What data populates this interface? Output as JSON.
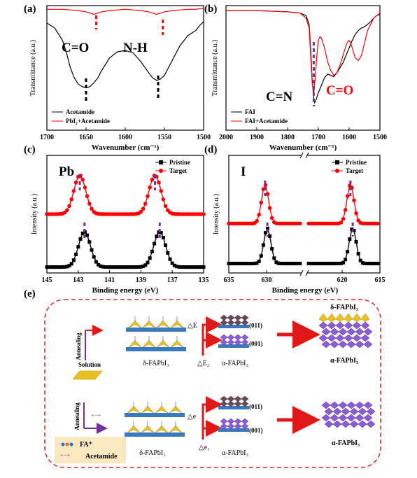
{
  "panels": {
    "a": {
      "label": "(a)",
      "ylabel": "Transmittance (a.u.)",
      "xlabel": "Wavenumber (cm⁻¹)",
      "xticks": [
        "1700",
        "1650",
        "1600",
        "1550",
        "1500"
      ],
      "ann_co": "C=O",
      "ann_nh": "N-H",
      "legend": [
        "Acetamide",
        "PbI₂+Acetamide"
      ]
    },
    "b": {
      "label": "(b)",
      "ylabel": "Transmittance (a.u.)",
      "xlabel": "Wavenumber (cm⁻¹)",
      "xticks": [
        "2000",
        "1900",
        "1800",
        "1700",
        "1600",
        "1500"
      ],
      "ann_cn": "C=N",
      "ann_co": "C=O",
      "legend": [
        "FAI",
        "FAI+Acetamide"
      ]
    },
    "c": {
      "label": "(c)",
      "ylabel": "Intensity (a.u.)",
      "xlabel": "Binding energy (eV)",
      "xticks": [
        "145",
        "143",
        "141",
        "139",
        "137",
        "135"
      ],
      "element": "Pb",
      "legend": [
        "Pristine",
        "Target"
      ]
    },
    "d": {
      "label": "(d)",
      "ylabel": "Intensity (a.u.)",
      "xlabel": "Binding energy (eV)",
      "xticks": [
        "635",
        "630",
        "620",
        "615"
      ],
      "element": "I",
      "legend": [
        "Pristine",
        "Target"
      ]
    }
  },
  "schematic": {
    "label": "(e)",
    "annealing": "Annealing",
    "solution": "Solution",
    "delta_fapbi3": "δ-FAPbI₃",
    "alpha_fapbi3": "α-FAPbI₃",
    "facet_011": "(011)",
    "facet_001": "(001)",
    "dE": "△E",
    "dE2": "△E₂",
    "de": "△e",
    "de1": "△e₁",
    "fa_plus": "FA⁺",
    "acetamide": "Acetamide"
  },
  "colors": {
    "black": "#000000",
    "red": "#ff0000",
    "purple": "#7030a0",
    "violet": "#8a5cd6",
    "crystal_yellow": "#e8c020",
    "substrate_blue": "#3a78c0",
    "arrow_red": "#e01818"
  },
  "chart_data": [
    {
      "panel": "a",
      "type": "line",
      "xlabel": "Wavenumber (cm⁻¹)",
      "ylabel": "Transmittance (a.u.)",
      "xlim": [
        1700,
        1500
      ],
      "x_reversed": true,
      "series": [
        {
          "name": "Acetamide",
          "color": "#000000",
          "x": [
            1700,
            1690,
            1680,
            1675,
            1670,
            1665,
            1660,
            1655,
            1650,
            1645,
            1640,
            1635,
            1630,
            1620,
            1610,
            1600,
            1590,
            1580,
            1570,
            1565,
            1560,
            1555,
            1550,
            1545,
            1540,
            1530,
            1520,
            1510,
            1505,
            1500
          ],
          "y": [
            0.86,
            0.82,
            0.72,
            0.62,
            0.5,
            0.42,
            0.37,
            0.35,
            0.34,
            0.35,
            0.38,
            0.42,
            0.48,
            0.58,
            0.63,
            0.64,
            0.62,
            0.55,
            0.46,
            0.42,
            0.4,
            0.41,
            0.44,
            0.5,
            0.56,
            0.68,
            0.76,
            0.8,
            0.84,
            0.87
          ]
        },
        {
          "name": "PbI₂+Acetamide",
          "color": "#ff0000",
          "x": [
            1700,
            1680,
            1660,
            1650,
            1645,
            1640,
            1635,
            1630,
            1620,
            1600,
            1580,
            1570,
            1565,
            1560,
            1555,
            1550,
            1540,
            1520,
            1510,
            1500
          ],
          "y": [
            0.97,
            0.97,
            0.96,
            0.95,
            0.94,
            0.93,
            0.94,
            0.95,
            0.96,
            0.97,
            0.96,
            0.95,
            0.94,
            0.93,
            0.94,
            0.95,
            0.96,
            0.97,
            0.97,
            0.98
          ]
        }
      ],
      "markers": [
        {
          "x": 1650,
          "color": "#000000"
        },
        {
          "x": 1558,
          "color": "#000000"
        },
        {
          "x": 1637,
          "color": "#ff0000"
        },
        {
          "x": 1552,
          "color": "#ff0000"
        }
      ]
    },
    {
      "panel": "b",
      "type": "line",
      "xlabel": "Wavenumber (cm⁻¹)",
      "ylabel": "Transmittance (a.u.)",
      "xlim": [
        2000,
        1500
      ],
      "x_reversed": true,
      "series": [
        {
          "name": "FAI",
          "color": "#000000",
          "x": [
            2000,
            1900,
            1800,
            1760,
            1740,
            1730,
            1725,
            1720,
            1715,
            1712,
            1708,
            1700,
            1690,
            1680,
            1670,
            1660,
            1650,
            1640,
            1630,
            1620,
            1610,
            1600,
            1590,
            1580,
            1570,
            1560,
            1550,
            1540,
            1530,
            1520,
            1510,
            1500
          ],
          "y": [
            0.96,
            0.96,
            0.95,
            0.94,
            0.92,
            0.85,
            0.65,
            0.4,
            0.25,
            0.22,
            0.24,
            0.3,
            0.36,
            0.42,
            0.45,
            0.44,
            0.43,
            0.46,
            0.5,
            0.54,
            0.6,
            0.66,
            0.72,
            0.77,
            0.8,
            0.82,
            0.83,
            0.85,
            0.87,
            0.9,
            0.92,
            0.93
          ]
        },
        {
          "name": "FAI+Acetamide",
          "color": "#ff0000",
          "x": [
            2000,
            1900,
            1800,
            1760,
            1740,
            1730,
            1725,
            1720,
            1715,
            1710,
            1705,
            1700,
            1695,
            1690,
            1685,
            1680,
            1670,
            1660,
            1650,
            1640,
            1630,
            1620,
            1610,
            1605,
            1600,
            1595,
            1590,
            1580,
            1570,
            1560,
            1550,
            1540,
            1520,
            1500
          ],
          "y": [
            0.96,
            0.96,
            0.95,
            0.94,
            0.9,
            0.82,
            0.6,
            0.38,
            0.3,
            0.42,
            0.6,
            0.72,
            0.75,
            0.74,
            0.7,
            0.66,
            0.55,
            0.48,
            0.44,
            0.46,
            0.52,
            0.6,
            0.68,
            0.71,
            0.72,
            0.7,
            0.66,
            0.58,
            0.56,
            0.6,
            0.7,
            0.8,
            0.9,
            0.94
          ]
        }
      ],
      "markers": [
        {
          "x": 1715,
          "color": "#7030a0"
        }
      ]
    },
    {
      "panel": "c",
      "type": "line",
      "xlabel": "Binding energy (eV)",
      "ylabel": "Intensity (a.u.)",
      "xlim": [
        145,
        135
      ],
      "x_reversed": true,
      "series": [
        {
          "name": "Pristine",
          "color": "#000000",
          "peaks": [
            142.6,
            137.8
          ],
          "width": 0.45,
          "offset": 0.05,
          "amplitude": 0.3
        },
        {
          "name": "Target",
          "color": "#ff0000",
          "peaks": [
            142.9,
            138.1
          ],
          "width": 0.45,
          "offset": 0.5,
          "amplitude": 0.33
        }
      ],
      "markers": [
        {
          "x": 142.6,
          "color": "#7030a0"
        },
        {
          "x": 137.8,
          "color": "#7030a0"
        },
        {
          "x": 142.9,
          "color": "#7030a0"
        },
        {
          "x": 138.1,
          "color": "#7030a0"
        }
      ]
    },
    {
      "panel": "d",
      "type": "line",
      "xlabel": "Binding energy (eV)",
      "ylabel": "Intensity (a.u.)",
      "xlim": [
        635,
        615
      ],
      "x_reversed": true,
      "axis_break": [
        625.5,
        624.5
      ],
      "series": [
        {
          "name": "Pristine",
          "color": "#000000",
          "peaks": [
            629.9,
            618.6
          ],
          "width": 0.55,
          "offset": 0.08,
          "amplitude": 0.3
        },
        {
          "name": "Target",
          "color": "#ff0000",
          "peaks": [
            630.2,
            618.9
          ],
          "width": 0.55,
          "offset": 0.42,
          "amplitude": 0.33
        }
      ],
      "markers": [
        {
          "x": 629.9,
          "color": "#7030a0"
        },
        {
          "x": 618.6,
          "color": "#7030a0"
        },
        {
          "x": 630.2,
          "color": "#7030a0"
        },
        {
          "x": 618.9,
          "color": "#7030a0"
        }
      ]
    }
  ]
}
